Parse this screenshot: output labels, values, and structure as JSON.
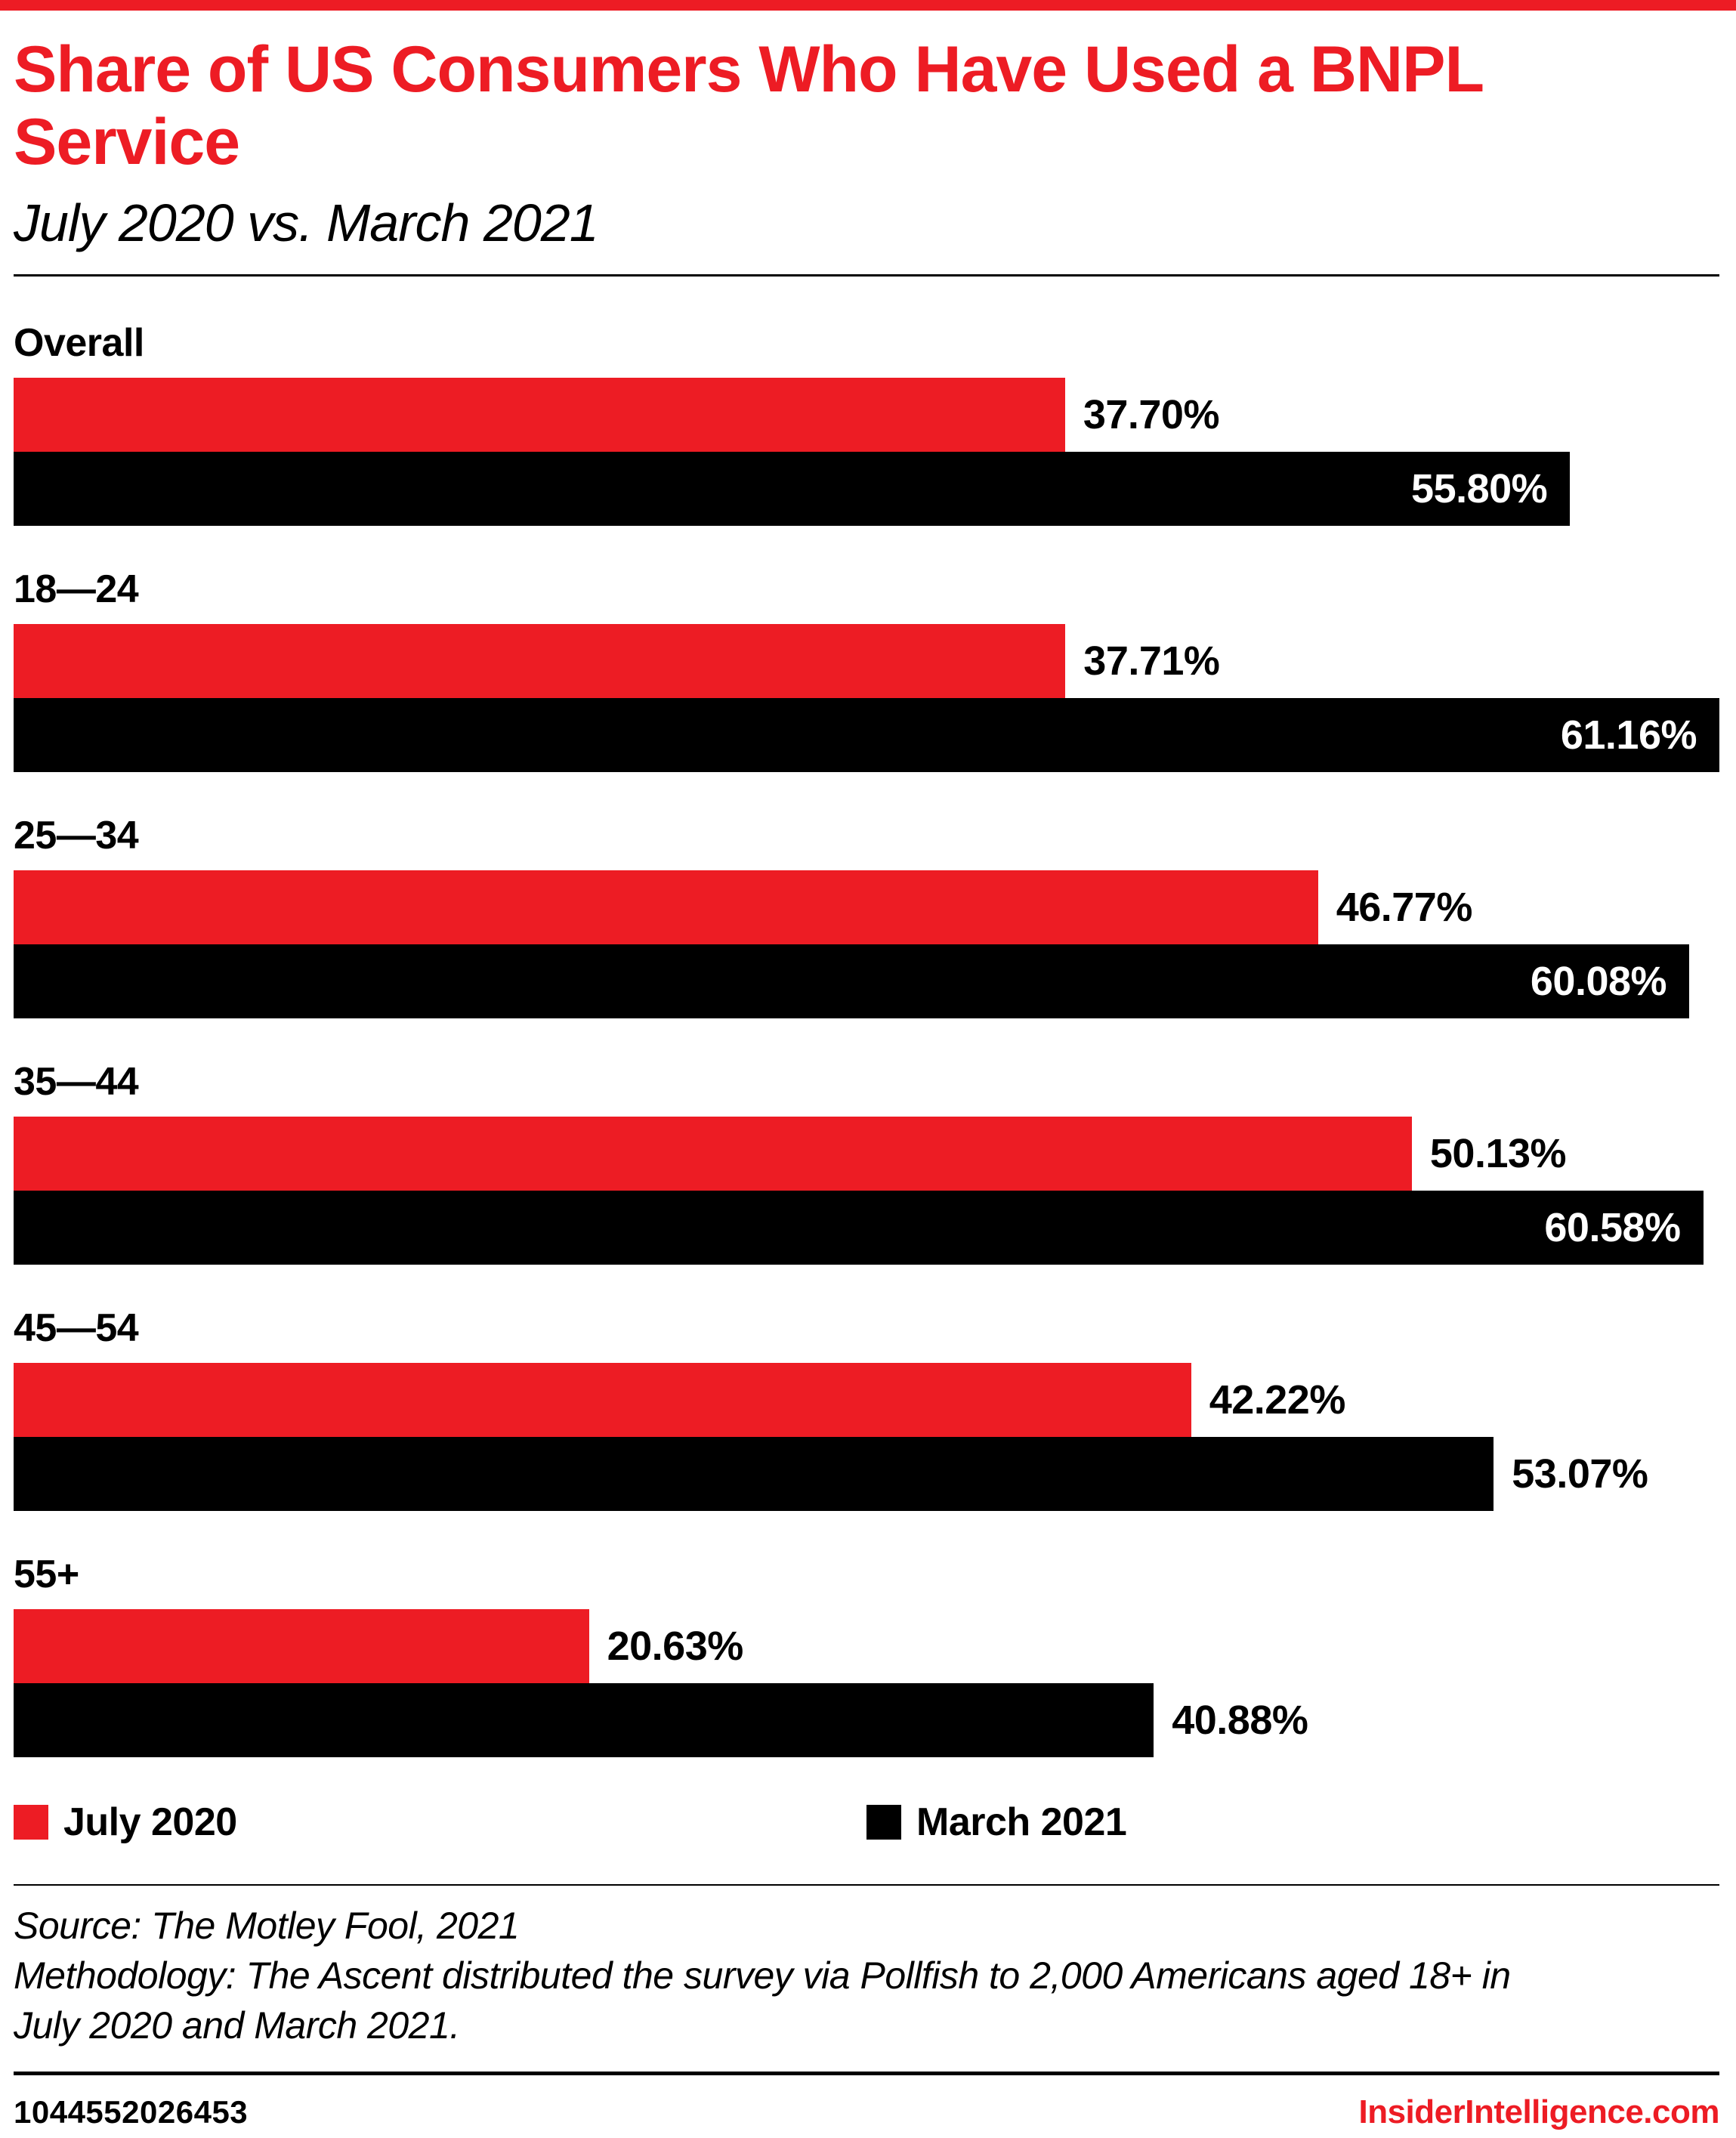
{
  "colors": {
    "accent_red": "#ed1c24",
    "bar_black": "#000000",
    "background": "#ffffff"
  },
  "header": {
    "title": "Share of US Consumers Who Have Used a BNPL Service",
    "subtitle": "July 2020 vs. March 2021"
  },
  "chart_data": {
    "type": "bar",
    "orientation": "horizontal",
    "title": "Share of US Consumers Who Have Used a BNPL Service",
    "subtitle": "July 2020 vs. March 2021",
    "unit": "%",
    "xlim": [
      0,
      61.16
    ],
    "grid": false,
    "legend_position": "bottom",
    "categories": [
      "Overall",
      "18—24",
      "25—34",
      "35—44",
      "45—54",
      "55+"
    ],
    "series": [
      {
        "name": "July 2020",
        "color": "#ed1c24",
        "values": [
          37.7,
          37.71,
          46.77,
          50.13,
          42.22,
          20.63
        ]
      },
      {
        "name": "March 2021",
        "color": "#000000",
        "values": [
          55.8,
          61.16,
          60.08,
          60.58,
          53.07,
          40.88
        ]
      }
    ],
    "rows": [
      {
        "category": "Overall",
        "july": {
          "value": 37.7,
          "label": "37.70%",
          "inside": false
        },
        "march": {
          "value": 55.8,
          "label": "55.80%",
          "inside": true
        }
      },
      {
        "category": "18—24",
        "july": {
          "value": 37.71,
          "label": "37.71%",
          "inside": false
        },
        "march": {
          "value": 61.16,
          "label": "61.16%",
          "inside": true
        }
      },
      {
        "category": "25—34",
        "july": {
          "value": 46.77,
          "label": "46.77%",
          "inside": false
        },
        "march": {
          "value": 60.08,
          "label": "60.08%",
          "inside": true
        }
      },
      {
        "category": "35—44",
        "july": {
          "value": 50.13,
          "label": "50.13%",
          "inside": false
        },
        "march": {
          "value": 60.58,
          "label": "60.58%",
          "inside": true
        }
      },
      {
        "category": "45—54",
        "july": {
          "value": 42.22,
          "label": "42.22%",
          "inside": false
        },
        "march": {
          "value": 53.07,
          "label": "53.07%",
          "inside": false
        }
      },
      {
        "category": "55+",
        "july": {
          "value": 20.63,
          "label": "20.63%",
          "inside": false
        },
        "march": {
          "value": 40.88,
          "label": "40.88%",
          "inside": false
        }
      }
    ]
  },
  "legend": [
    {
      "label": "July 2020",
      "color": "#ed1c24"
    },
    {
      "label": "March 2021",
      "color": "#000000"
    }
  ],
  "notes": {
    "source": "Source: The Motley Fool, 2021",
    "methodology": "Methodology: The Ascent distributed the survey via Pollfish to 2,000 Americans aged 18+ in July 2020 and March 2021."
  },
  "footer": {
    "chart_id": "1044552026453",
    "brand": "InsiderIntelligence.com"
  }
}
